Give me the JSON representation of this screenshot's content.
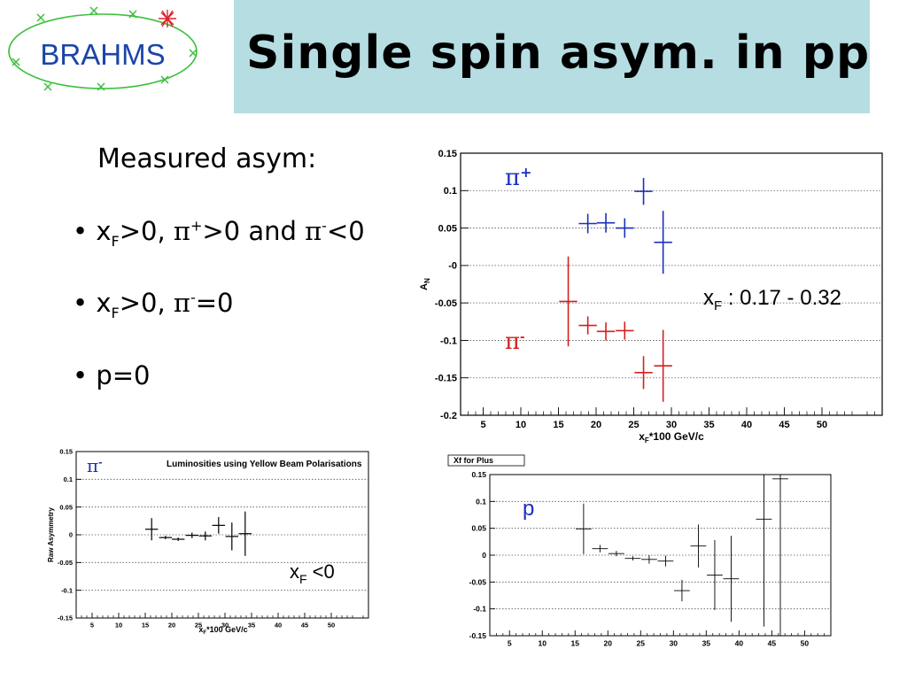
{
  "slide": {
    "logo_text": "BRAHMS",
    "title": "Single spin asym. in pp",
    "subheading": "Measured asym:",
    "bullets": [
      {
        "dot": "•",
        "x": "x",
        "F": "F",
        "a": ">0, ",
        "pi": "π",
        "p1": "+",
        "b": ">0 and ",
        "pi2": "π",
        "m1": "-",
        "c": "<0"
      },
      {
        "dot": "•",
        "x": "x",
        "F": "F",
        "a": ">0, ",
        "pi": "π",
        "m1": "-",
        "c": "=0"
      },
      {
        "dot": "•",
        "text": "p=0"
      }
    ]
  },
  "colors": {
    "title_band": "#b5dde2",
    "pi_plus": "#1a2fbf",
    "pi_minus": "#d42020",
    "logo_blue": "#1a45a8",
    "logo_green": "#3cc03c"
  },
  "chart_data": [
    {
      "type": "scatter",
      "xlabel": "x_F*100 GeV/c",
      "ylabel": "A_N",
      "xlim": [
        2,
        58
      ],
      "ylim": [
        -0.2,
        0.15
      ],
      "xticks": [
        5,
        10,
        15,
        20,
        25,
        30,
        35,
        40,
        45,
        50
      ],
      "yticks": [
        0.15,
        0.1,
        0.05,
        0,
        -0.05,
        -0.1,
        -0.15,
        -0.2
      ],
      "ytick_labels": [
        "0.15",
        "0.1",
        "0.05",
        "-0",
        "-0.05",
        "-0.1",
        "-0.15",
        "-0.2"
      ],
      "grid": "horizontal dotted",
      "annotation": {
        "x": "x",
        "F": "F",
        "rest": " : 0.17 - 0.32"
      },
      "series": [
        {
          "name": "π+",
          "color": "#1a2fbf",
          "points": [
            {
              "x": 18.9,
              "y": 0.056,
              "xerr": 1.2,
              "yerr": 0.013
            },
            {
              "x": 21.3,
              "y": 0.057,
              "xerr": 1.2,
              "yerr": 0.013
            },
            {
              "x": 23.8,
              "y": 0.05,
              "xerr": 1.2,
              "yerr": 0.013
            },
            {
              "x": 26.3,
              "y": 0.099,
              "xerr": 1.2,
              "yerr": 0.018
            },
            {
              "x": 28.9,
              "y": 0.031,
              "xerr": 1.2,
              "yerr": 0.042
            }
          ]
        },
        {
          "name": "π-",
          "color": "#d42020",
          "points": [
            {
              "x": 16.3,
              "y": -0.048,
              "xerr": 1.2,
              "yerr": 0.06
            },
            {
              "x": 18.9,
              "y": -0.08,
              "xerr": 1.2,
              "yerr": 0.012
            },
            {
              "x": 21.3,
              "y": -0.088,
              "xerr": 1.2,
              "yerr": 0.012
            },
            {
              "x": 23.8,
              "y": -0.087,
              "xerr": 1.2,
              "yerr": 0.012
            },
            {
              "x": 26.3,
              "y": -0.143,
              "xerr": 1.2,
              "yerr": 0.022
            },
            {
              "x": 28.9,
              "y": -0.134,
              "xerr": 1.2,
              "yerr": 0.048
            }
          ]
        }
      ]
    },
    {
      "type": "scatter",
      "title": "Luminosities using Yellow Beam Polarisations",
      "xlabel": "x_F*100 GeV/c",
      "ylabel": "Raw Asymmetry",
      "xlim": [
        2,
        57
      ],
      "ylim": [
        -0.15,
        0.15
      ],
      "xticks": [
        5,
        10,
        15,
        20,
        25,
        30,
        35,
        40,
        45,
        50
      ],
      "yticks": [
        0.15,
        0.1,
        0.05,
        0,
        -0.05,
        -0.1,
        -0.15
      ],
      "ytick_labels": [
        "0.15",
        "0.1",
        "0.05",
        "0",
        "-0.05",
        "-0.1",
        "-0.15"
      ],
      "grid": "horizontal dotted",
      "series_label": "π-",
      "annotation": {
        "x": "x",
        "F": "F",
        "rest": " <0"
      },
      "series": [
        {
          "name": "π-",
          "color": "#000000",
          "points": [
            {
              "x": 16.2,
              "y": 0.01,
              "xerr": 1.2,
              "yerr": 0.02
            },
            {
              "x": 18.8,
              "y": -0.005,
              "xerr": 1.2,
              "yerr": 0.003
            },
            {
              "x": 21.2,
              "y": -0.008,
              "xerr": 1.2,
              "yerr": 0.003
            },
            {
              "x": 23.8,
              "y": -0.001,
              "xerr": 1.2,
              "yerr": 0.005
            },
            {
              "x": 26.3,
              "y": -0.002,
              "xerr": 1.2,
              "yerr": 0.008
            },
            {
              "x": 28.8,
              "y": 0.017,
              "xerr": 1.2,
              "yerr": 0.015
            },
            {
              "x": 31.3,
              "y": -0.003,
              "xerr": 1.2,
              "yerr": 0.025
            },
            {
              "x": 33.8,
              "y": 0.002,
              "xerr": 1.2,
              "yerr": 0.04
            }
          ]
        }
      ]
    },
    {
      "type": "scatter",
      "title": "Xf for Plus",
      "xlim": [
        2,
        54
      ],
      "ylim": [
        -0.15,
        0.15
      ],
      "xticks": [
        5,
        10,
        15,
        20,
        25,
        30,
        35,
        40,
        45,
        50
      ],
      "yticks": [
        0.15,
        0.1,
        0.05,
        0,
        -0.05,
        -0.1,
        -0.15
      ],
      "ytick_labels": [
        "0.15",
        "0.1",
        "0.05",
        "0",
        "-0.05",
        "-0.1",
        "-0.15"
      ],
      "grid": "horizontal dotted",
      "series_label": "p",
      "series": [
        {
          "name": "p",
          "color": "#000000",
          "points": [
            {
              "x": 16.3,
              "y": 0.049,
              "xerr": 1.2,
              "yerr": 0.047
            },
            {
              "x": 18.8,
              "y": 0.012,
              "xerr": 1.2,
              "yerr": 0.007
            },
            {
              "x": 21.3,
              "y": 0.003,
              "xerr": 1.2,
              "yerr": 0.005
            },
            {
              "x": 23.8,
              "y": -0.006,
              "xerr": 1.2,
              "yerr": 0.004
            },
            {
              "x": 26.3,
              "y": -0.008,
              "xerr": 1.2,
              "yerr": 0.008
            },
            {
              "x": 28.8,
              "y": -0.011,
              "xerr": 1.2,
              "yerr": 0.01
            },
            {
              "x": 31.3,
              "y": -0.066,
              "xerr": 1.2,
              "yerr": 0.02
            },
            {
              "x": 33.8,
              "y": 0.017,
              "xerr": 1.2,
              "yerr": 0.04
            },
            {
              "x": 36.3,
              "y": -0.037,
              "xerr": 1.2,
              "yerr": 0.065
            },
            {
              "x": 38.8,
              "y": -0.044,
              "xerr": 1.2,
              "yerr": 0.08
            },
            {
              "x": 43.8,
              "y": 0.067,
              "xerr": 1.2,
              "yerr": 0.2
            },
            {
              "x": 46.3,
              "y": 0.142,
              "xerr": 1.2,
              "yerr": 0.3
            }
          ]
        }
      ]
    }
  ]
}
